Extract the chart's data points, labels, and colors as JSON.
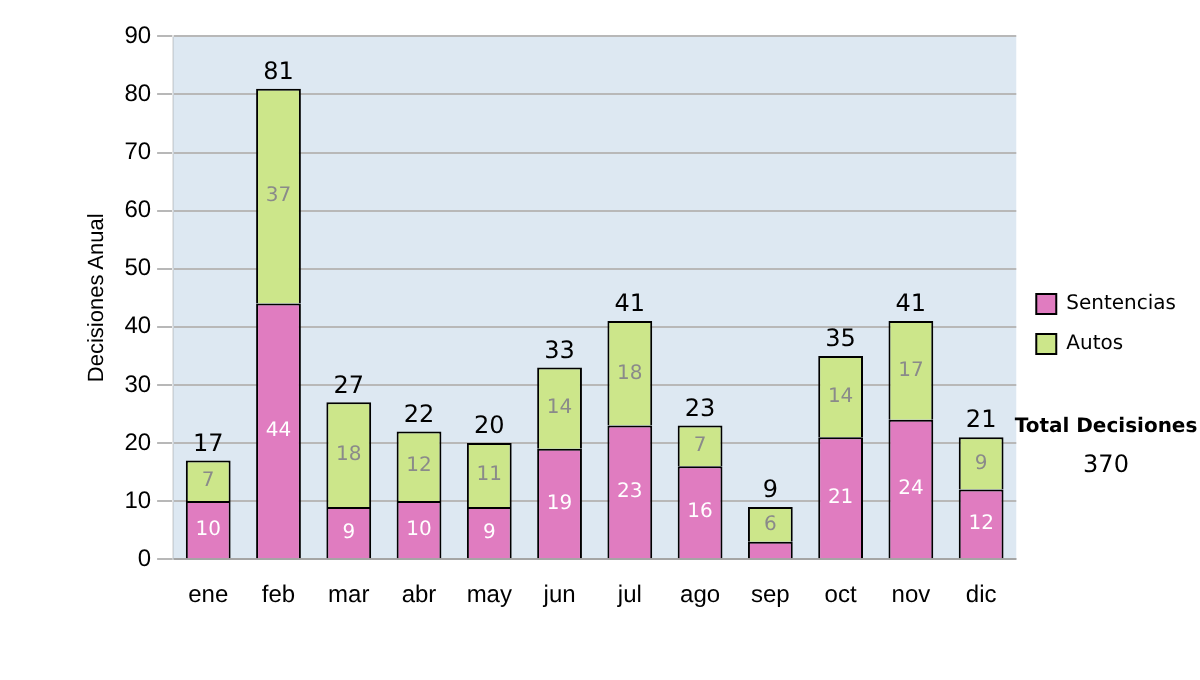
{
  "chart_data": {
    "type": "bar",
    "stacked": true,
    "ylabel": "Decisiones Anual",
    "categories": [
      "ene",
      "feb",
      "mar",
      "abr",
      "may",
      "jun",
      "jul",
      "ago",
      "sep",
      "oct",
      "nov",
      "dic"
    ],
    "series": [
      {
        "name": "Sentencias",
        "color": "#e07cc0",
        "values": [
          10,
          44,
          9,
          10,
          9,
          19,
          23,
          16,
          3,
          21,
          24,
          12
        ],
        "value_labels": [
          "10",
          "44",
          "9",
          "10",
          "9",
          "19",
          "23",
          "16",
          null,
          "21",
          "24",
          "12"
        ]
      },
      {
        "name": "Autos",
        "color": "#cce68a",
        "values": [
          7,
          37,
          18,
          12,
          11,
          14,
          18,
          7,
          6,
          14,
          17,
          9
        ],
        "value_labels": [
          "7",
          "37",
          "18",
          "12",
          "11",
          "14",
          "18",
          "7",
          "6",
          "14",
          "17",
          "9"
        ]
      }
    ],
    "totals": [
      "17",
      "81",
      "27",
      "22",
      "20",
      "33",
      "41",
      "23",
      "9",
      "35",
      "41",
      "21"
    ],
    "ylim": [
      0,
      90
    ],
    "yticks": [
      0,
      10,
      20,
      30,
      40,
      50,
      60,
      70,
      80,
      90
    ],
    "grid": "y",
    "legend": "right",
    "annotations": [
      "Total Decisiones",
      "370"
    ]
  }
}
